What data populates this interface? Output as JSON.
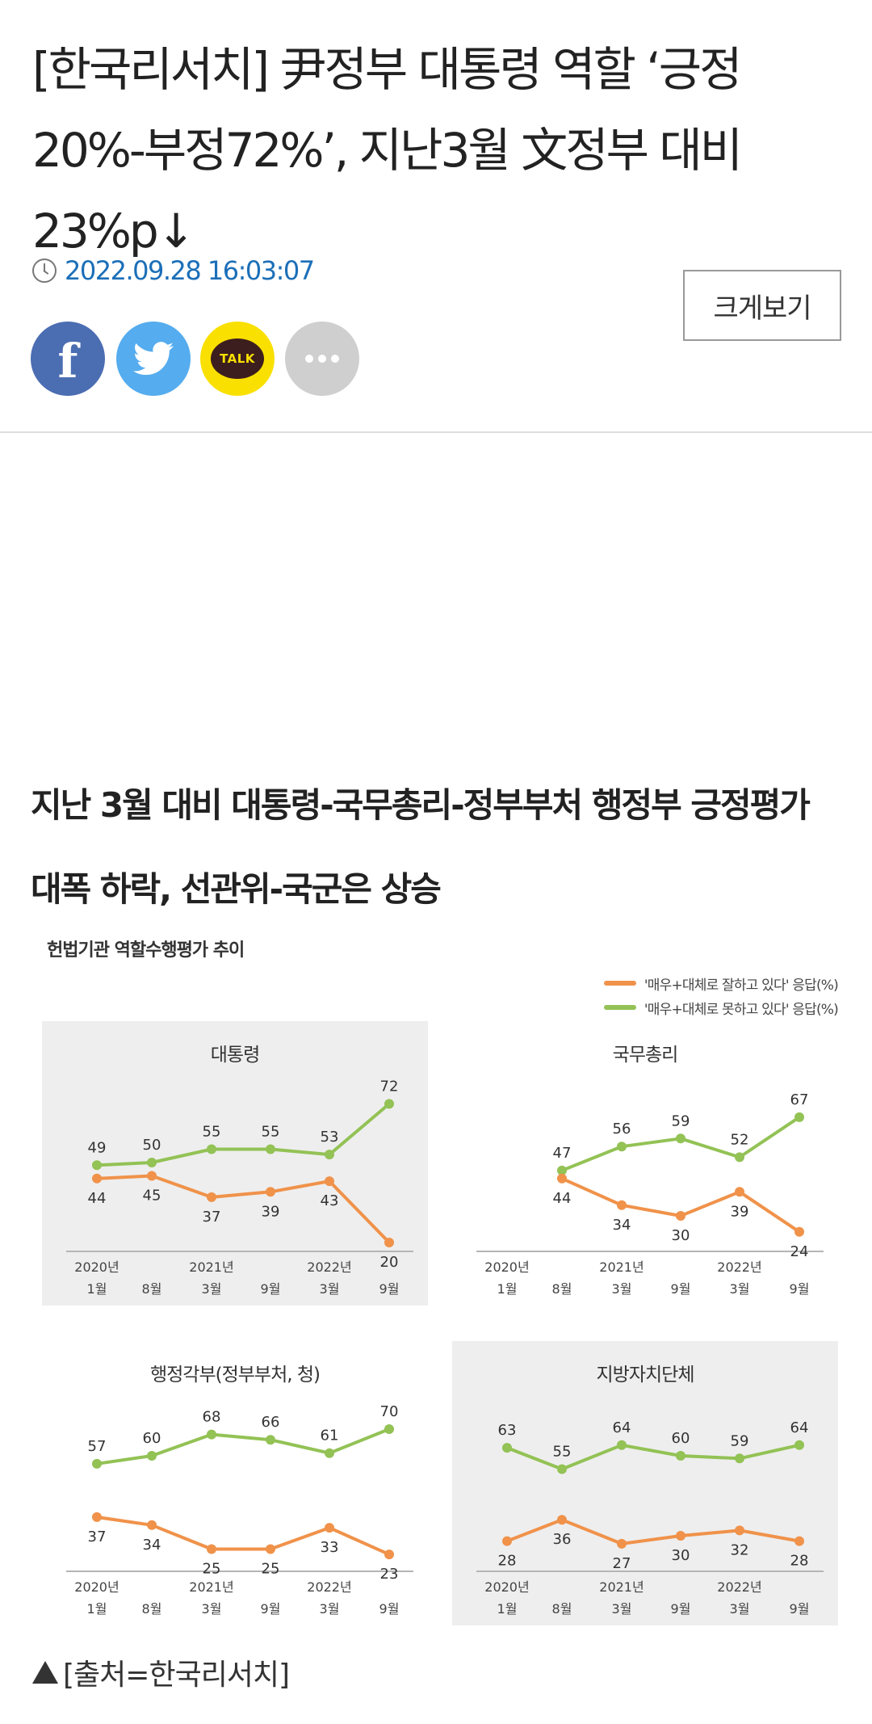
{
  "article": {
    "headline": "[한국리서치] 尹정부 대통령 역할 ‘긍정 20%-부정72%’, 지난3월 文정부 대비 23%p↓",
    "date": "2022.09.28 16:03:07",
    "zoom_label": "크게보기",
    "share": {
      "facebook": "f",
      "kakao": "TALK"
    },
    "subhead": "지난 3월 대비 대통령-국무총리-정부부처 행정부 긍정평가 대폭 하락, 선관위-국군은 상승",
    "caption": "[출처=한국리서치]"
  },
  "icons": {
    "clock": "clock-icon",
    "facebook": "facebook-icon",
    "twitter": "twitter-bird-icon",
    "kakao": "kakaotalk-icon",
    "more": "more-dots-icon",
    "caption": "triangle-up-icon"
  },
  "colors": {
    "positive": "#f0924a",
    "negative": "#93c255"
  },
  "chart_data": {
    "title": "헌법기관 역할수행평가 추이",
    "legend": {
      "placement": "top-right",
      "positive": "'매우+대체로 잘하고 있다' 응답(%)",
      "negative": "'매우+대체로 못하고 있다' 응답(%)"
    },
    "type": "line",
    "x_year_labels": [
      "2020년",
      "",
      "2021년",
      "",
      "2022년",
      ""
    ],
    "x_month_labels": [
      "1월",
      "8월",
      "3월",
      "9월",
      "3월",
      "9월"
    ],
    "charts": [
      {
        "title": "대통령",
        "shaded": true,
        "series": [
          {
            "key": "negative",
            "values": [
              49,
              50,
              55,
              55,
              53,
              72
            ]
          },
          {
            "key": "positive",
            "values": [
              44,
              45,
              37,
              39,
              43,
              20
            ]
          }
        ]
      },
      {
        "title": "국무총리",
        "shaded": false,
        "series": [
          {
            "key": "negative",
            "values": [
              47,
              56,
              59,
              52,
              67
            ],
            "start_index": 1
          },
          {
            "key": "positive",
            "values": [
              44,
              34,
              30,
              39,
              24
            ],
            "start_index": 1
          }
        ]
      },
      {
        "title": "행정각부(정부부처, 청)",
        "shaded": false,
        "series": [
          {
            "key": "negative",
            "values": [
              57,
              60,
              68,
              66,
              61,
              70
            ]
          },
          {
            "key": "positive",
            "values": [
              37,
              34,
              25,
              25,
              33,
              23
            ]
          }
        ]
      },
      {
        "title": "지방자치단체",
        "shaded": true,
        "series": [
          {
            "key": "negative",
            "values": [
              63,
              55,
              64,
              60,
              59,
              64
            ]
          },
          {
            "key": "positive",
            "values": [
              28,
              36,
              27,
              30,
              32,
              28
            ]
          }
        ]
      }
    ]
  }
}
